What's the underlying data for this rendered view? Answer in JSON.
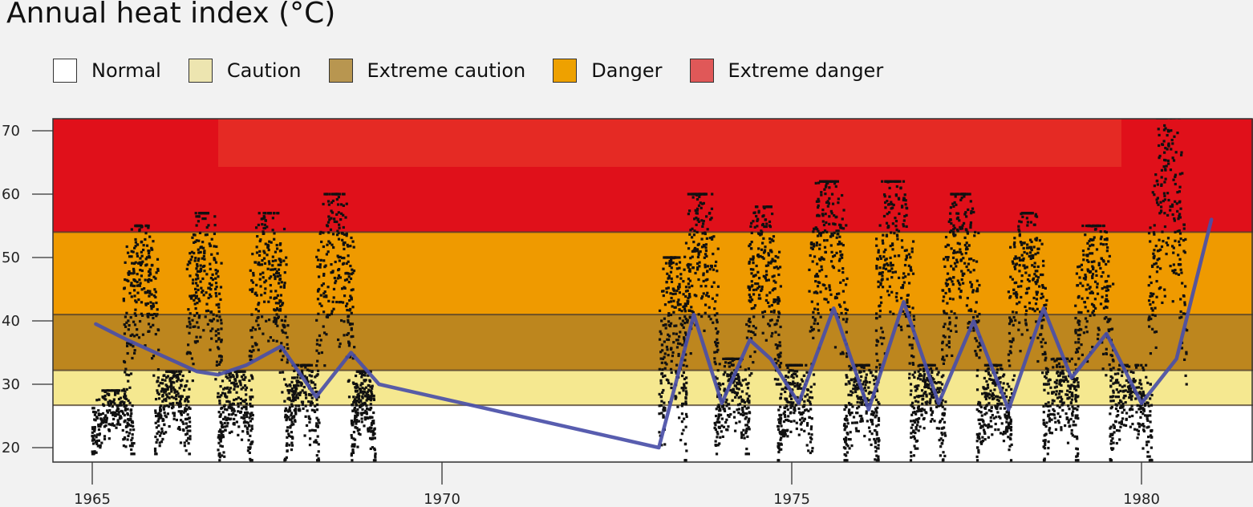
{
  "chart_data": {
    "type": "scatter",
    "title": "Annual heat index (°C)",
    "xlabel": "",
    "ylabel": "",
    "xlim": [
      1965,
      1982
    ],
    "ylim": [
      18,
      72
    ],
    "x_ticks": [
      1965,
      1970,
      1975,
      1980
    ],
    "y_ticks": [
      20,
      30,
      40,
      50,
      60,
      70
    ],
    "grid": false,
    "legend_position": "top",
    "bands": [
      {
        "name": "Normal",
        "from": 18,
        "to": 26.7,
        "color": "#ffffff"
      },
      {
        "name": "Caution",
        "from": 26.7,
        "to": 32.2,
        "color": "#f5e890"
      },
      {
        "name": "Extreme caution",
        "from": 32.2,
        "to": 41,
        "color": "#bd861e"
      },
      {
        "name": "Danger",
        "from": 41,
        "to": 54,
        "color": "#ef9a00"
      },
      {
        "name": "Extreme danger",
        "from": 54,
        "to": 72,
        "color": "#e0101a"
      }
    ],
    "legend": [
      {
        "name": "Normal",
        "color": "#ffffff"
      },
      {
        "name": "Caution",
        "color": "#ede5b0"
      },
      {
        "name": "Extreme caution",
        "color": "#b89650"
      },
      {
        "name": "Danger",
        "color": "#eea100"
      },
      {
        "name": "Extreme danger",
        "color": "#e05858"
      }
    ],
    "point_clusters": [
      {
        "period": "1965",
        "x_start": 1965.0,
        "x_end": 1965.6,
        "y_low": 19,
        "y_high": 29
      },
      {
        "period": "1965-66",
        "x_start": 1965.45,
        "x_end": 1965.95,
        "y_low": 28,
        "y_high": 55
      },
      {
        "period": "1966",
        "x_start": 1965.9,
        "x_end": 1966.4,
        "y_low": 19,
        "y_high": 32
      },
      {
        "period": "1966-67",
        "x_start": 1966.35,
        "x_end": 1966.85,
        "y_low": 28,
        "y_high": 57
      },
      {
        "period": "1967",
        "x_start": 1966.8,
        "x_end": 1967.3,
        "y_low": 18,
        "y_high": 32
      },
      {
        "period": "1967-68",
        "x_start": 1967.25,
        "x_end": 1967.8,
        "y_low": 28,
        "y_high": 57
      },
      {
        "period": "1968",
        "x_start": 1967.75,
        "x_end": 1968.25,
        "y_low": 18,
        "y_high": 33
      },
      {
        "period": "1968-69",
        "x_start": 1968.2,
        "x_end": 1968.75,
        "y_low": 28,
        "y_high": 60
      },
      {
        "period": "1969",
        "x_start": 1968.7,
        "x_end": 1969.05,
        "y_low": 18,
        "y_high": 32
      },
      {
        "period": "1973",
        "x_start": 1973.1,
        "x_end": 1973.5,
        "y_low": 18,
        "y_high": 50
      },
      {
        "period": "1973-74",
        "x_start": 1973.45,
        "x_end": 1973.95,
        "y_low": 30,
        "y_high": 60
      },
      {
        "period": "1974",
        "x_start": 1973.9,
        "x_end": 1974.4,
        "y_low": 19,
        "y_high": 34
      },
      {
        "period": "1974-75",
        "x_start": 1974.35,
        "x_end": 1974.85,
        "y_low": 30,
        "y_high": 58
      },
      {
        "period": "1975",
        "x_start": 1974.8,
        "x_end": 1975.3,
        "y_low": 18,
        "y_high": 33
      },
      {
        "period": "1975-76",
        "x_start": 1975.25,
        "x_end": 1975.8,
        "y_low": 30,
        "y_high": 62
      },
      {
        "period": "1976",
        "x_start": 1975.75,
        "x_end": 1976.25,
        "y_low": 18,
        "y_high": 33
      },
      {
        "period": "1976-77",
        "x_start": 1976.2,
        "x_end": 1976.75,
        "y_low": 30,
        "y_high": 62
      },
      {
        "period": "1977",
        "x_start": 1976.7,
        "x_end": 1977.2,
        "y_low": 18,
        "y_high": 33
      },
      {
        "period": "1977-78",
        "x_start": 1977.15,
        "x_end": 1977.7,
        "y_low": 30,
        "y_high": 60
      },
      {
        "period": "1978",
        "x_start": 1977.65,
        "x_end": 1978.15,
        "y_low": 18,
        "y_high": 33
      },
      {
        "period": "1978-79",
        "x_start": 1978.1,
        "x_end": 1978.65,
        "y_low": 30,
        "y_high": 57
      },
      {
        "period": "1979",
        "x_start": 1978.6,
        "x_end": 1979.1,
        "y_low": 18,
        "y_high": 34
      },
      {
        "period": "1979-80",
        "x_start": 1979.05,
        "x_end": 1979.6,
        "y_low": 28,
        "y_high": 55
      },
      {
        "period": "1980",
        "x_start": 1979.55,
        "x_end": 1980.15,
        "y_low": 18,
        "y_high": 33
      },
      {
        "period": "1980-81",
        "x_start": 1980.1,
        "x_end": 1980.65,
        "y_low": 30,
        "y_high": 72
      }
    ],
    "series": [
      {
        "type": "line",
        "color": "#4a4fa8",
        "x": [
          1965.05,
          1965.5,
          1966,
          1966.5,
          1966.8,
          1967.2,
          1967.7,
          1968.2,
          1968.7,
          1969.1,
          1973.1,
          1973.6,
          1974.0,
          1974.4,
          1974.7,
          1975.1,
          1975.6,
          1976.1,
          1976.6,
          1977.1,
          1977.6,
          1978.1,
          1978.6,
          1979.0,
          1979.5,
          1980.0,
          1980.5,
          1981.0
        ],
        "y": [
          39.5,
          37,
          34.5,
          32,
          31.5,
          33,
          36,
          28,
          35,
          30,
          20,
          41,
          27,
          37,
          34,
          27,
          42,
          26,
          43,
          27,
          40,
          26,
          42,
          31,
          38,
          27,
          34,
          56
        ]
      }
    ]
  }
}
